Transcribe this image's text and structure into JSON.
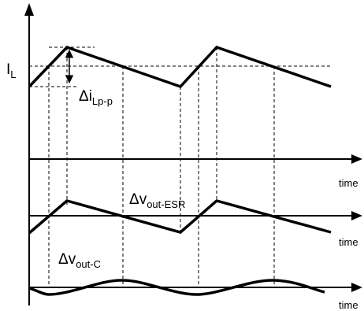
{
  "labels": {
    "il": "I",
    "il_sub": "L",
    "delta_il": "Δi",
    "delta_il_sub": "Lp-p",
    "delta_esr": "Δv",
    "delta_esr_sub": "out-ESR",
    "delta_c": "Δv",
    "delta_c_sub": "out-C",
    "time1": "time",
    "time2": "time",
    "time3": "time"
  },
  "colors": {
    "line": "#000000"
  }
}
